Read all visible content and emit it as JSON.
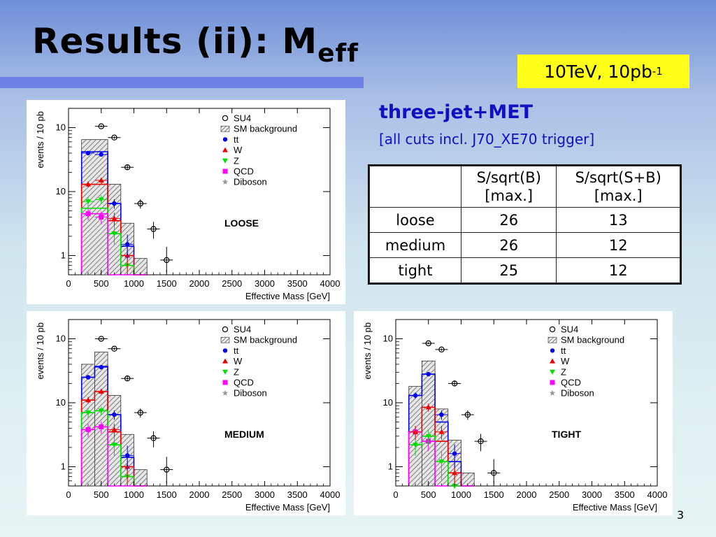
{
  "slide": {
    "title_main": "Results (ii): M",
    "title_sub": "eff",
    "badge_main": "10TeV, 10pb",
    "badge_sup": "-1",
    "subtitle": "three-jet+MET",
    "subtitle2": "[all cuts incl. J70_XE70 trigger]",
    "page_number": "3"
  },
  "colors": {
    "su4": "#000000",
    "sm_background": "#555555",
    "tt": "#0000ee",
    "w": "#ee0000",
    "z": "#00dd00",
    "qcd": "#ff00ff",
    "diboson": "#999999"
  },
  "table": {
    "headers": [
      [
        "S/sqrt(B)",
        "[max.]"
      ],
      [
        "S/sqrt(S+B)",
        "[max.]"
      ]
    ],
    "rows": [
      {
        "label": "loose",
        "sb": "26",
        "ssb": "13"
      },
      {
        "label": "medium",
        "sb": "26",
        "ssb": "12"
      },
      {
        "label": "tight",
        "sb": "25",
        "ssb": "12"
      }
    ]
  },
  "chart_data": [
    {
      "type": "bar",
      "label": "LOOSE",
      "xlabel": "Effective Mass [GeV]",
      "ylabel": "events / 10 pb",
      "ylabel_sup": "-1",
      "xlim": [
        0,
        4000
      ],
      "ylim": [
        0.5,
        200
      ],
      "log_y": true,
      "xticks": [
        0,
        500,
        1000,
        1500,
        2000,
        2500,
        3000,
        3500,
        4000
      ],
      "yticks": [
        {
          "v": 1,
          "t": "1"
        },
        {
          "v": 10,
          "t": "10"
        },
        {
          "v": 100,
          "t": "10",
          "sup": "2"
        }
      ],
      "legend": [
        "SU4",
        "SM background",
        "tt",
        "W",
        "Z",
        "QCD",
        "Diboson"
      ],
      "bin_edges": [
        200,
        600,
        800,
        1000,
        1200
      ],
      "sm_background": [
        65,
        13,
        3.2,
        0.9
      ],
      "tt": [
        42,
        6.5,
        1.4,
        0.5
      ],
      "w": [
        13,
        3.5,
        1.0,
        0.5
      ],
      "z": [
        5.5,
        2.2,
        0.7,
        0.5
      ],
      "qcd": [
        4.5,
        0.5,
        0.5,
        0.5
      ],
      "su4": {
        "x": [
          500,
          700,
          900,
          1100,
          1300,
          1500
        ],
        "y": [
          105,
          70,
          24,
          6.5,
          2.6,
          0.85
        ]
      },
      "tt_points": {
        "x": [
          300,
          500,
          700,
          900
        ],
        "y": [
          40,
          38,
          6.5,
          1.5
        ]
      },
      "w_points": {
        "x": [
          300,
          500,
          700,
          900
        ],
        "y": [
          13,
          15,
          3.8,
          1.0
        ]
      },
      "z_points": {
        "x": [
          300,
          500,
          700,
          900
        ],
        "y": [
          7,
          7.5,
          2.2,
          0.7
        ]
      },
      "qcd_points": {
        "x": [
          300,
          500
        ],
        "y": [
          4.5,
          4.0
        ]
      }
    },
    {
      "type": "bar",
      "label": "MEDIUM",
      "xlabel": "Effective Mass [GeV]",
      "ylabel": "events / 10 pb",
      "ylabel_sup": "-1",
      "xlim": [
        0,
        4000
      ],
      "ylim": [
        0.5,
        200
      ],
      "log_y": true,
      "xticks": [
        0,
        500,
        1000,
        1500,
        2000,
        2500,
        3000,
        3500,
        4000
      ],
      "yticks": [
        {
          "v": 1,
          "t": "1"
        },
        {
          "v": 10,
          "t": "10"
        },
        {
          "v": 100,
          "t": "10",
          "sup": "2"
        }
      ],
      "legend": [
        "SU4",
        "SM background",
        "tt",
        "W",
        "Z",
        "QCD",
        "Diboson"
      ],
      "bin_edges": [
        200,
        400,
        600,
        800,
        1000,
        1200
      ],
      "sm_background": [
        40,
        62,
        13,
        3.2,
        0.9
      ],
      "tt": [
        25,
        37,
        6.5,
        1.4,
        0.5
      ],
      "w": [
        11,
        15,
        3.5,
        1.0,
        0.5
      ],
      "z": [
        7,
        7.5,
        2.2,
        0.7,
        0.5
      ],
      "qcd": [
        3.8,
        4.2,
        0.5,
        0.5,
        0.5
      ],
      "su4": {
        "x": [
          500,
          700,
          900,
          1100,
          1300,
          1500
        ],
        "y": [
          100,
          70,
          24,
          7,
          2.8,
          0.9
        ]
      },
      "tt_points": {
        "x": [
          300,
          500,
          700,
          900
        ],
        "y": [
          25,
          36,
          6.5,
          1.5
        ]
      },
      "w_points": {
        "x": [
          300,
          500,
          700,
          900
        ],
        "y": [
          11,
          15,
          3.8,
          1.0
        ]
      },
      "z_points": {
        "x": [
          300,
          500,
          700,
          900
        ],
        "y": [
          7,
          7.5,
          2.2,
          0.7
        ]
      },
      "qcd_points": {
        "x": [
          300,
          500
        ],
        "y": [
          3.8,
          4.2
        ]
      }
    },
    {
      "type": "bar",
      "label": "TIGHT",
      "xlabel": "Effective Mass [GeV]",
      "ylabel": "events / 10 pb",
      "ylabel_sup": "-1",
      "xlim": [
        0,
        4000
      ],
      "ylim": [
        0.5,
        200
      ],
      "log_y": true,
      "xticks": [
        0,
        500,
        1000,
        1500,
        2000,
        2500,
        3000,
        3500,
        4000
      ],
      "yticks": [
        {
          "v": 1,
          "t": "1"
        },
        {
          "v": 10,
          "t": "10"
        },
        {
          "v": 100,
          "t": "10",
          "sup": "2"
        }
      ],
      "legend": [
        "SU4",
        "SM background",
        "tt",
        "W",
        "Z",
        "QCD",
        "Diboson"
      ],
      "bin_edges": [
        200,
        400,
        600,
        800,
        1000,
        1200
      ],
      "sm_background": [
        18,
        45,
        8,
        2.6,
        0.8
      ],
      "tt": [
        13,
        28,
        5,
        1.2,
        0.5
      ],
      "w": [
        3.5,
        8.5,
        2.5,
        0.8,
        0.5
      ],
      "z": [
        2.2,
        3.0,
        1.2,
        0.5,
        0.5
      ],
      "qcd": [
        3.5,
        2.5,
        0.5,
        0.5,
        0.5
      ],
      "su4": {
        "x": [
          500,
          700,
          900,
          1100,
          1300,
          1500
        ],
        "y": [
          85,
          68,
          20,
          6.5,
          2.5,
          0.8
        ]
      },
      "tt_points": {
        "x": [
          300,
          500,
          700,
          900
        ],
        "y": [
          13,
          28,
          6.5,
          1.6
        ]
      },
      "w_points": {
        "x": [
          300,
          500,
          700,
          900
        ],
        "y": [
          3.5,
          8.5,
          3.5,
          0.8
        ]
      },
      "z_points": {
        "x": [
          300,
          500,
          700,
          900
        ],
        "y": [
          2.2,
          3.0,
          1.2,
          0.5
        ]
      },
      "qcd_points": {
        "x": [
          300,
          500
        ],
        "y": [
          3.5,
          2.5
        ]
      }
    }
  ]
}
